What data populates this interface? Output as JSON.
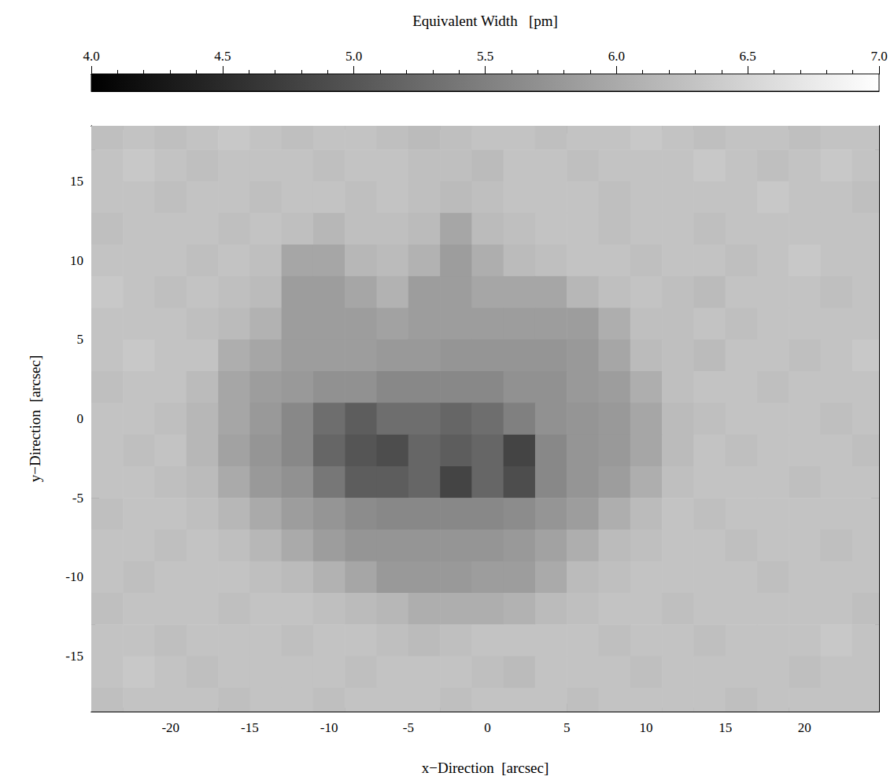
{
  "chart_data": {
    "type": "heatmap",
    "xlabel": "x−Direction  [arcsec]",
    "ylabel": "y−Direction  [arcsec]",
    "xlim": [
      -25,
      24.7
    ],
    "ylim": [
      -18.5,
      18.5
    ],
    "xticks": [
      -20,
      -15,
      -10,
      -5,
      0,
      5,
      10,
      15,
      20
    ],
    "yticks": [
      -15,
      -10,
      -5,
      0,
      5,
      10,
      15
    ],
    "cells": {
      "x": [
        -24,
        -22,
        -20,
        -18,
        -16,
        -14,
        -12,
        -10,
        -8,
        -6,
        -4,
        -2,
        0,
        2,
        4,
        6,
        8,
        10,
        12,
        14,
        16,
        18,
        20,
        22,
        24
      ],
      "y": [
        18,
        16,
        14,
        12,
        10,
        8,
        6,
        4,
        2,
        0,
        -2,
        -4,
        -6,
        -8,
        -10,
        -12,
        -14,
        -16,
        -18
      ],
      "values": [
        [
          6.25,
          6.3,
          6.25,
          6.3,
          6.35,
          6.3,
          6.25,
          6.3,
          6.3,
          6.25,
          6.2,
          6.25,
          6.3,
          6.3,
          6.25,
          6.3,
          6.3,
          6.35,
          6.3,
          6.25,
          6.3,
          6.3,
          6.25,
          6.3,
          6.3
        ],
        [
          6.3,
          6.35,
          6.3,
          6.25,
          6.3,
          6.3,
          6.3,
          6.25,
          6.3,
          6.3,
          6.25,
          6.25,
          6.2,
          6.3,
          6.3,
          6.25,
          6.3,
          6.3,
          6.3,
          6.35,
          6.3,
          6.25,
          6.3,
          6.35,
          6.3
        ],
        [
          6.3,
          6.3,
          6.25,
          6.3,
          6.3,
          6.25,
          6.3,
          6.3,
          6.25,
          6.3,
          6.25,
          6.2,
          6.25,
          6.3,
          6.3,
          6.3,
          6.25,
          6.3,
          6.3,
          6.3,
          6.3,
          6.35,
          6.3,
          6.3,
          6.25
        ],
        [
          6.25,
          6.3,
          6.3,
          6.3,
          6.25,
          6.3,
          6.25,
          6.15,
          6.25,
          6.25,
          6.2,
          5.95,
          6.2,
          6.25,
          6.3,
          6.3,
          6.25,
          6.3,
          6.3,
          6.25,
          6.3,
          6.3,
          6.3,
          6.3,
          6.3
        ],
        [
          6.3,
          6.3,
          6.3,
          6.25,
          6.3,
          6.25,
          5.95,
          5.95,
          6.15,
          6.2,
          6.1,
          5.85,
          6.05,
          6.2,
          6.25,
          6.3,
          6.3,
          6.25,
          6.3,
          6.3,
          6.25,
          6.3,
          6.35,
          6.3,
          6.3
        ],
        [
          6.35,
          6.3,
          6.25,
          6.3,
          6.25,
          6.2,
          5.85,
          5.85,
          5.95,
          6.1,
          5.85,
          5.85,
          5.95,
          5.95,
          5.95,
          6.15,
          6.25,
          6.3,
          6.25,
          6.2,
          6.3,
          6.3,
          6.3,
          6.25,
          6.3
        ],
        [
          6.3,
          6.3,
          6.3,
          6.25,
          6.2,
          6.1,
          5.85,
          5.85,
          5.85,
          5.9,
          5.85,
          5.85,
          5.85,
          5.85,
          5.85,
          5.85,
          6.05,
          6.25,
          6.25,
          6.3,
          6.25,
          6.3,
          6.3,
          6.3,
          6.3
        ],
        [
          6.3,
          6.35,
          6.3,
          6.3,
          6.05,
          5.95,
          5.85,
          5.85,
          5.85,
          5.8,
          5.8,
          5.75,
          5.75,
          5.75,
          5.75,
          5.8,
          5.95,
          6.2,
          6.25,
          6.2,
          6.3,
          6.3,
          6.25,
          6.3,
          6.35
        ],
        [
          6.25,
          6.3,
          6.3,
          6.2,
          5.95,
          5.85,
          5.8,
          5.7,
          5.7,
          5.6,
          5.6,
          5.6,
          5.6,
          5.7,
          5.7,
          5.8,
          5.85,
          6.05,
          6.25,
          6.3,
          6.3,
          6.25,
          6.3,
          6.3,
          6.3
        ],
        [
          6.3,
          6.3,
          6.25,
          6.15,
          5.95,
          5.8,
          5.6,
          5.3,
          5.1,
          5.3,
          5.3,
          5.2,
          5.3,
          5.5,
          5.7,
          5.75,
          5.8,
          5.95,
          6.2,
          6.25,
          6.3,
          6.3,
          6.3,
          6.25,
          6.3
        ],
        [
          6.3,
          6.25,
          6.3,
          6.15,
          5.9,
          5.75,
          5.6,
          5.2,
          5.0,
          4.9,
          5.2,
          5.1,
          5.2,
          4.8,
          5.6,
          5.75,
          5.8,
          5.95,
          6.2,
          6.3,
          6.25,
          6.3,
          6.3,
          6.3,
          6.25
        ],
        [
          6.3,
          6.3,
          6.25,
          6.2,
          6.0,
          5.8,
          5.7,
          5.4,
          5.1,
          5.1,
          5.2,
          4.8,
          5.2,
          4.9,
          5.6,
          5.75,
          5.85,
          6.05,
          6.25,
          6.3,
          6.3,
          6.3,
          6.25,
          6.3,
          6.3
        ],
        [
          6.25,
          6.3,
          6.3,
          6.25,
          6.15,
          6.0,
          5.85,
          5.75,
          5.65,
          5.6,
          5.6,
          5.6,
          5.6,
          5.65,
          5.75,
          5.85,
          6.05,
          6.2,
          6.3,
          6.25,
          6.3,
          6.3,
          6.3,
          6.3,
          6.3
        ],
        [
          6.3,
          6.3,
          6.25,
          6.3,
          6.25,
          6.15,
          6.0,
          5.85,
          5.75,
          5.75,
          5.75,
          5.75,
          5.75,
          5.8,
          5.9,
          6.05,
          6.2,
          6.25,
          6.3,
          6.3,
          6.25,
          6.3,
          6.3,
          6.25,
          6.3
        ],
        [
          6.3,
          6.25,
          6.3,
          6.3,
          6.3,
          6.25,
          6.2,
          6.1,
          5.95,
          5.8,
          5.8,
          5.8,
          5.85,
          5.85,
          6.0,
          6.2,
          6.25,
          6.3,
          6.3,
          6.3,
          6.3,
          6.25,
          6.3,
          6.3,
          6.3
        ],
        [
          6.25,
          6.3,
          6.3,
          6.3,
          6.25,
          6.3,
          6.3,
          6.25,
          6.2,
          6.15,
          6.05,
          6.05,
          6.05,
          6.1,
          6.2,
          6.25,
          6.3,
          6.3,
          6.25,
          6.3,
          6.3,
          6.3,
          6.3,
          6.3,
          6.25
        ],
        [
          6.3,
          6.3,
          6.25,
          6.3,
          6.3,
          6.3,
          6.25,
          6.3,
          6.3,
          6.25,
          6.2,
          6.25,
          6.3,
          6.3,
          6.3,
          6.3,
          6.25,
          6.3,
          6.3,
          6.25,
          6.3,
          6.3,
          6.3,
          6.35,
          6.3
        ],
        [
          6.3,
          6.35,
          6.3,
          6.25,
          6.3,
          6.3,
          6.3,
          6.3,
          6.25,
          6.3,
          6.3,
          6.3,
          6.25,
          6.2,
          6.3,
          6.3,
          6.3,
          6.25,
          6.3,
          6.3,
          6.3,
          6.3,
          6.25,
          6.3,
          6.3
        ],
        [
          6.25,
          6.3,
          6.3,
          6.3,
          6.25,
          6.3,
          6.3,
          6.25,
          6.3,
          6.3,
          6.3,
          6.25,
          6.3,
          6.3,
          6.3,
          6.25,
          6.3,
          6.3,
          6.3,
          6.3,
          6.25,
          6.3,
          6.3,
          6.3,
          6.3
        ]
      ]
    },
    "colorbar": {
      "label": "Equivalent Width   [pm]",
      "range": [
        4,
        7
      ],
      "ticks": [
        {
          "value": 4,
          "label": "4.0"
        },
        4.5,
        {
          "value": 5,
          "label": "5.0"
        },
        5.5,
        {
          "value": 6,
          "label": "6.0"
        },
        6.5,
        {
          "value": 7,
          "label": "7.0"
        }
      ]
    }
  }
}
